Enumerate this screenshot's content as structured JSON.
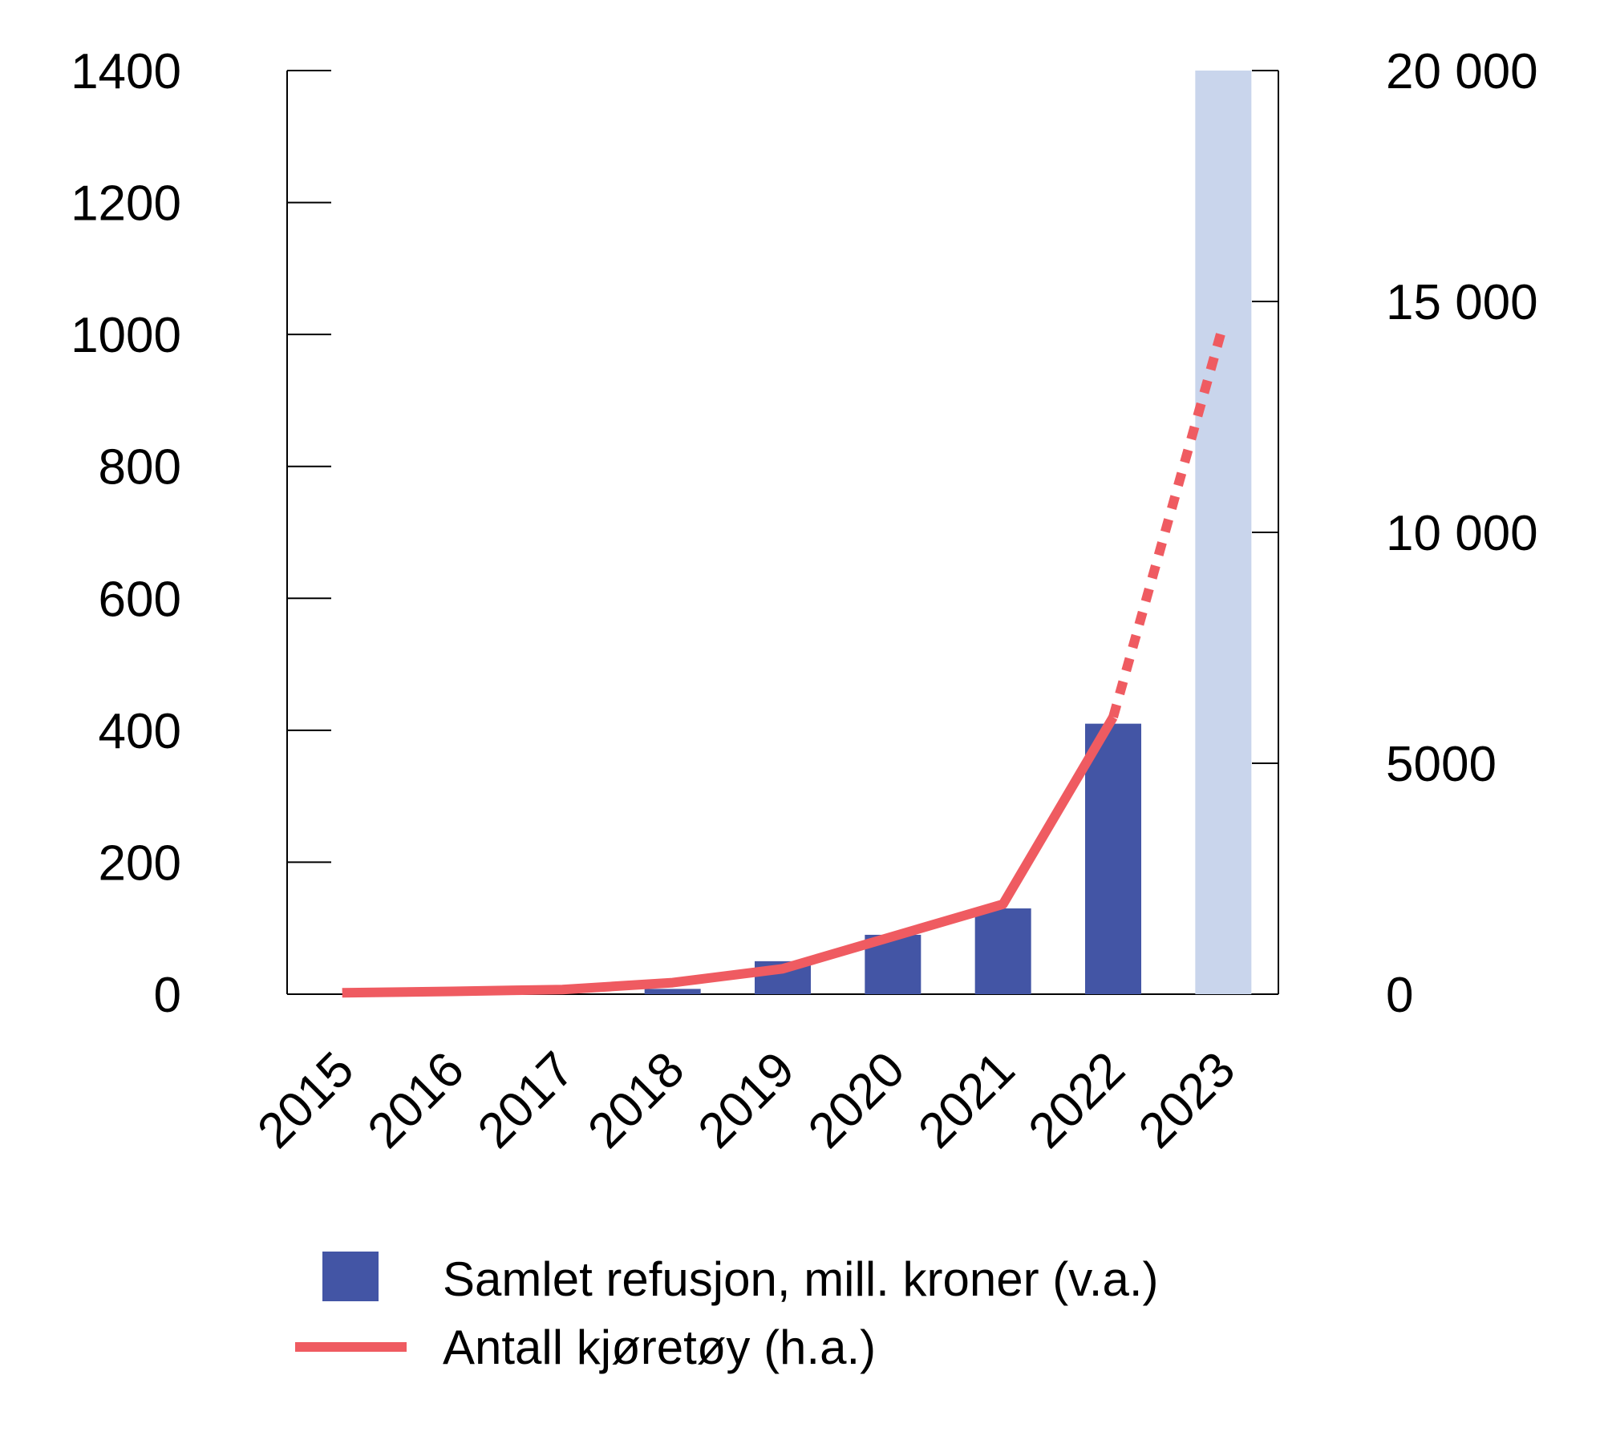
{
  "chart_data": {
    "type": "bar+line",
    "categories": [
      "2015",
      "2016",
      "2017",
      "2018",
      "2019",
      "2020",
      "2021",
      "2022",
      "2023"
    ],
    "series": [
      {
        "name": "Samlet refusjon, mill. kroner (v.a.)",
        "kind": "bar",
        "axis": "left",
        "values": [
          0,
          0,
          0,
          8,
          50,
          90,
          130,
          410,
          1400
        ],
        "estimated_last_value": true,
        "color": "#4355a5",
        "estimate_color": "#c9d5ec"
      },
      {
        "name": "Antall kjøretøy (h.a.)",
        "kind": "line",
        "axis": "right",
        "values": [
          30,
          60,
          100,
          250,
          550,
          1250,
          1950,
          6000,
          14500
        ],
        "dashed_from_index": 7,
        "color": "#ef5b61"
      }
    ],
    "y_left": {
      "ylim": [
        0,
        1400
      ],
      "ticks": [
        "0",
        "200",
        "400",
        "600",
        "800",
        "1000",
        "1200",
        "1400"
      ]
    },
    "y_right": {
      "ylim": [
        0,
        20000
      ],
      "ticks": [
        "0",
        "5000",
        "10 000",
        "15 000",
        "20 000"
      ]
    },
    "legend": {
      "placement": "bottom",
      "items": [
        {
          "label": "Samlet refusjon, mill. kroner (v.a.)",
          "marker": "square",
          "color": "#4355a5"
        },
        {
          "label": "Antall kjøretøy (h.a.)",
          "marker": "line",
          "color": "#ef5b61"
        }
      ]
    },
    "grid": false
  }
}
